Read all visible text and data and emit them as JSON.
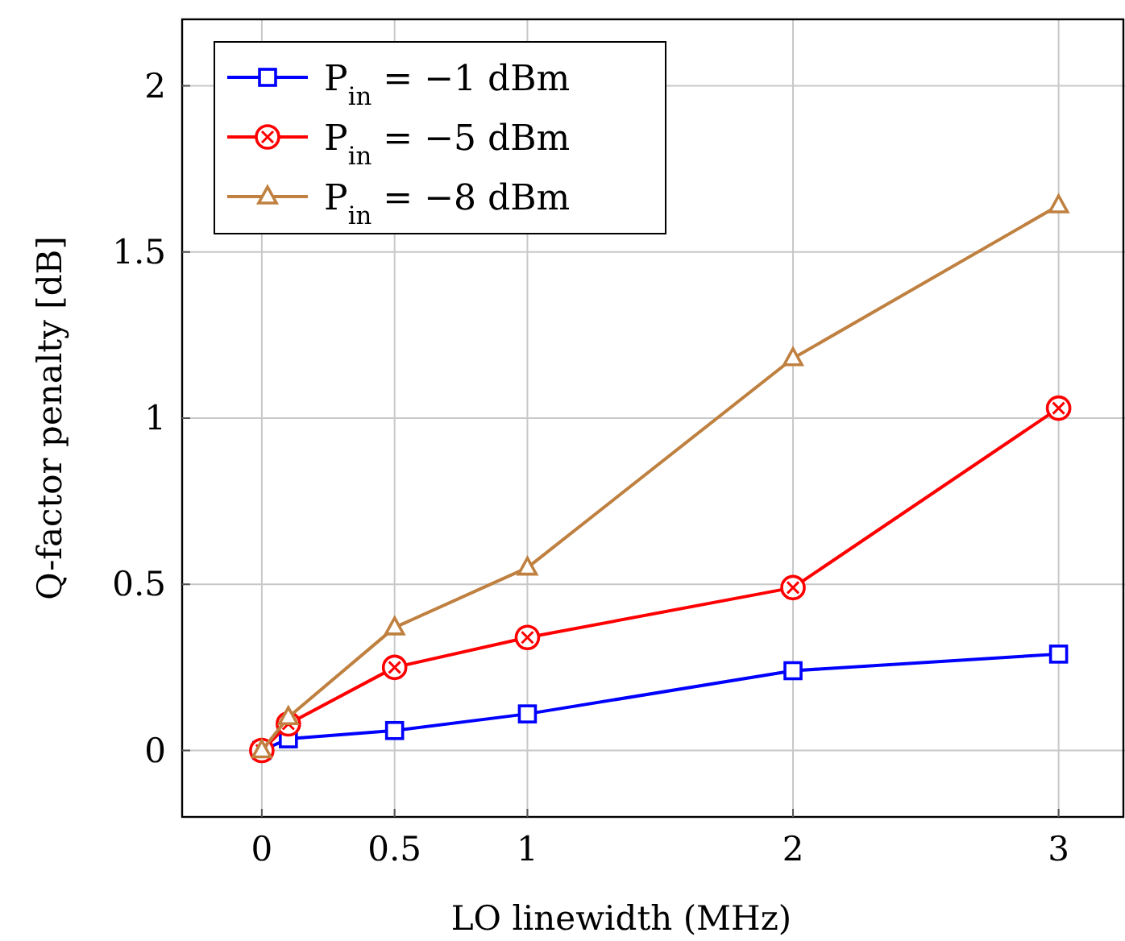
{
  "chart_data": {
    "type": "line",
    "xlabel": "LO linewidth (MHz)",
    "ylabel": "Q-factor penalty [dB]",
    "x": [
      0,
      0.1,
      0.5,
      1,
      2,
      3
    ],
    "xlim": [
      -0.3,
      3.25
    ],
    "ylim": [
      -0.2,
      2.2
    ],
    "xticks": [
      0,
      0.5,
      1,
      2,
      3
    ],
    "yticks": [
      0,
      0.5,
      1,
      1.5,
      2
    ],
    "grid": true,
    "legend": "top left",
    "series": [
      {
        "name": "P$_{in}$ = −1 dBm",
        "color": "#0000ff",
        "marker": "square",
        "values": [
          0,
          0.035,
          0.06,
          0.11,
          0.24,
          0.29
        ]
      },
      {
        "name": "P$_{in}$ = −5 dBm",
        "color": "#ff0000",
        "marker": "circle",
        "values": [
          0,
          0.08,
          0.25,
          0.34,
          0.49,
          1.03
        ]
      },
      {
        "name": "P$_{in}$ = −8 dBm",
        "color": "#bf8040",
        "marker": "triangle",
        "values": [
          0,
          0.1,
          0.37,
          0.55,
          1.18,
          1.64
        ]
      }
    ]
  }
}
